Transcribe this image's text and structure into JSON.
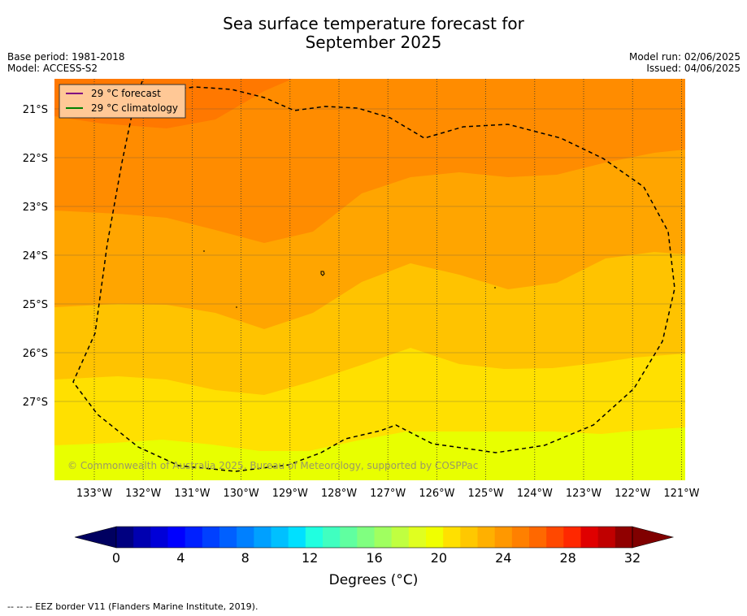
{
  "title": {
    "line1": "Sea surface temperature forecast for",
    "line2": "September 2025"
  },
  "meta": {
    "base_period": "Base period: 1981-2018",
    "model": "Model: ACCESS-S2",
    "model_run": "Model run: 02/06/2025",
    "issued": "Issued: 04/06/2025"
  },
  "legend": {
    "items": [
      {
        "label": "29 °C  forecast",
        "color": "#800080"
      },
      {
        "label": "29 °C  climatology",
        "color": "#008000"
      }
    ]
  },
  "map": {
    "lat_labels": [
      "21°S",
      "22°S",
      "23°S",
      "24°S",
      "25°S",
      "26°S",
      "27°S"
    ],
    "lon_labels": [
      "133°W",
      "132°W",
      "131°W",
      "130°W",
      "129°W",
      "128°W",
      "127°W",
      "126°W",
      "125°W",
      "124°W",
      "123°W",
      "122°W",
      "121°W"
    ],
    "copyright": "© Commonwealth of Australia 2025, Bureau of Meteorology, supported by COSPPac",
    "colors": {
      "c29": "#ff7800",
      "c28": "#ff8c00",
      "c27": "#ffa500",
      "c26": "#ffc300",
      "c25": "#ffe000",
      "c24": "#e8ff00"
    }
  },
  "colorbar": {
    "tick_labels": [
      "0",
      "4",
      "8",
      "12",
      "16",
      "20",
      "24",
      "28",
      "32"
    ],
    "label": "Degrees (°C)",
    "colors": [
      "#000080",
      "#0000b0",
      "#0000d8",
      "#0000ff",
      "#0020ff",
      "#0040ff",
      "#0060ff",
      "#0080ff",
      "#00a0ff",
      "#00c0ff",
      "#00e0ff",
      "#20ffe0",
      "#40ffc0",
      "#60ffa0",
      "#80ff80",
      "#a0ff60",
      "#c0ff40",
      "#e0ff20",
      "#f0ff00",
      "#ffe000",
      "#ffc800",
      "#ffb000",
      "#ff9800",
      "#ff8000",
      "#ff6800",
      "#ff4800",
      "#ff2800",
      "#e00000",
      "#c00000",
      "#900000"
    ],
    "under_color": "#000060",
    "over_color": "#800000"
  },
  "footer": "--  --  -- EEZ border V11 (Flanders Marine Institute, 2019)."
}
